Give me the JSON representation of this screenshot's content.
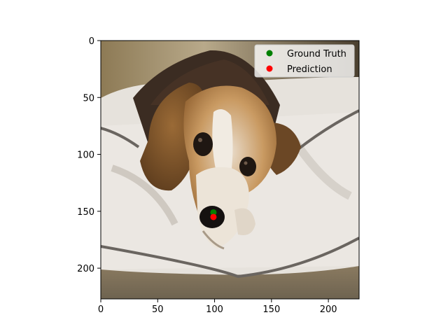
{
  "chart_data": {
    "type": "scatter",
    "image_extent": {
      "width": 227,
      "height": 227
    },
    "xlim": [
      0,
      227
    ],
    "ylim": [
      227,
      0
    ],
    "x_ticks": [
      0,
      50,
      100,
      150,
      200
    ],
    "y_ticks": [
      0,
      50,
      100,
      150,
      200
    ],
    "grid": false,
    "legend_position": "top-right",
    "series": [
      {
        "name": "Ground Truth",
        "color": "#008000",
        "points": [
          {
            "x": 99,
            "y": 151
          }
        ]
      },
      {
        "name": "Prediction",
        "color": "#ff0000",
        "points": [
          {
            "x": 99,
            "y": 155
          }
        ]
      }
    ],
    "background_image": "photo of a beagle lying on a white pillow bed"
  },
  "legend": {
    "items": [
      {
        "label": "Ground Truth",
        "color": "#008000"
      },
      {
        "label": "Prediction",
        "color": "#ff0000"
      }
    ]
  }
}
